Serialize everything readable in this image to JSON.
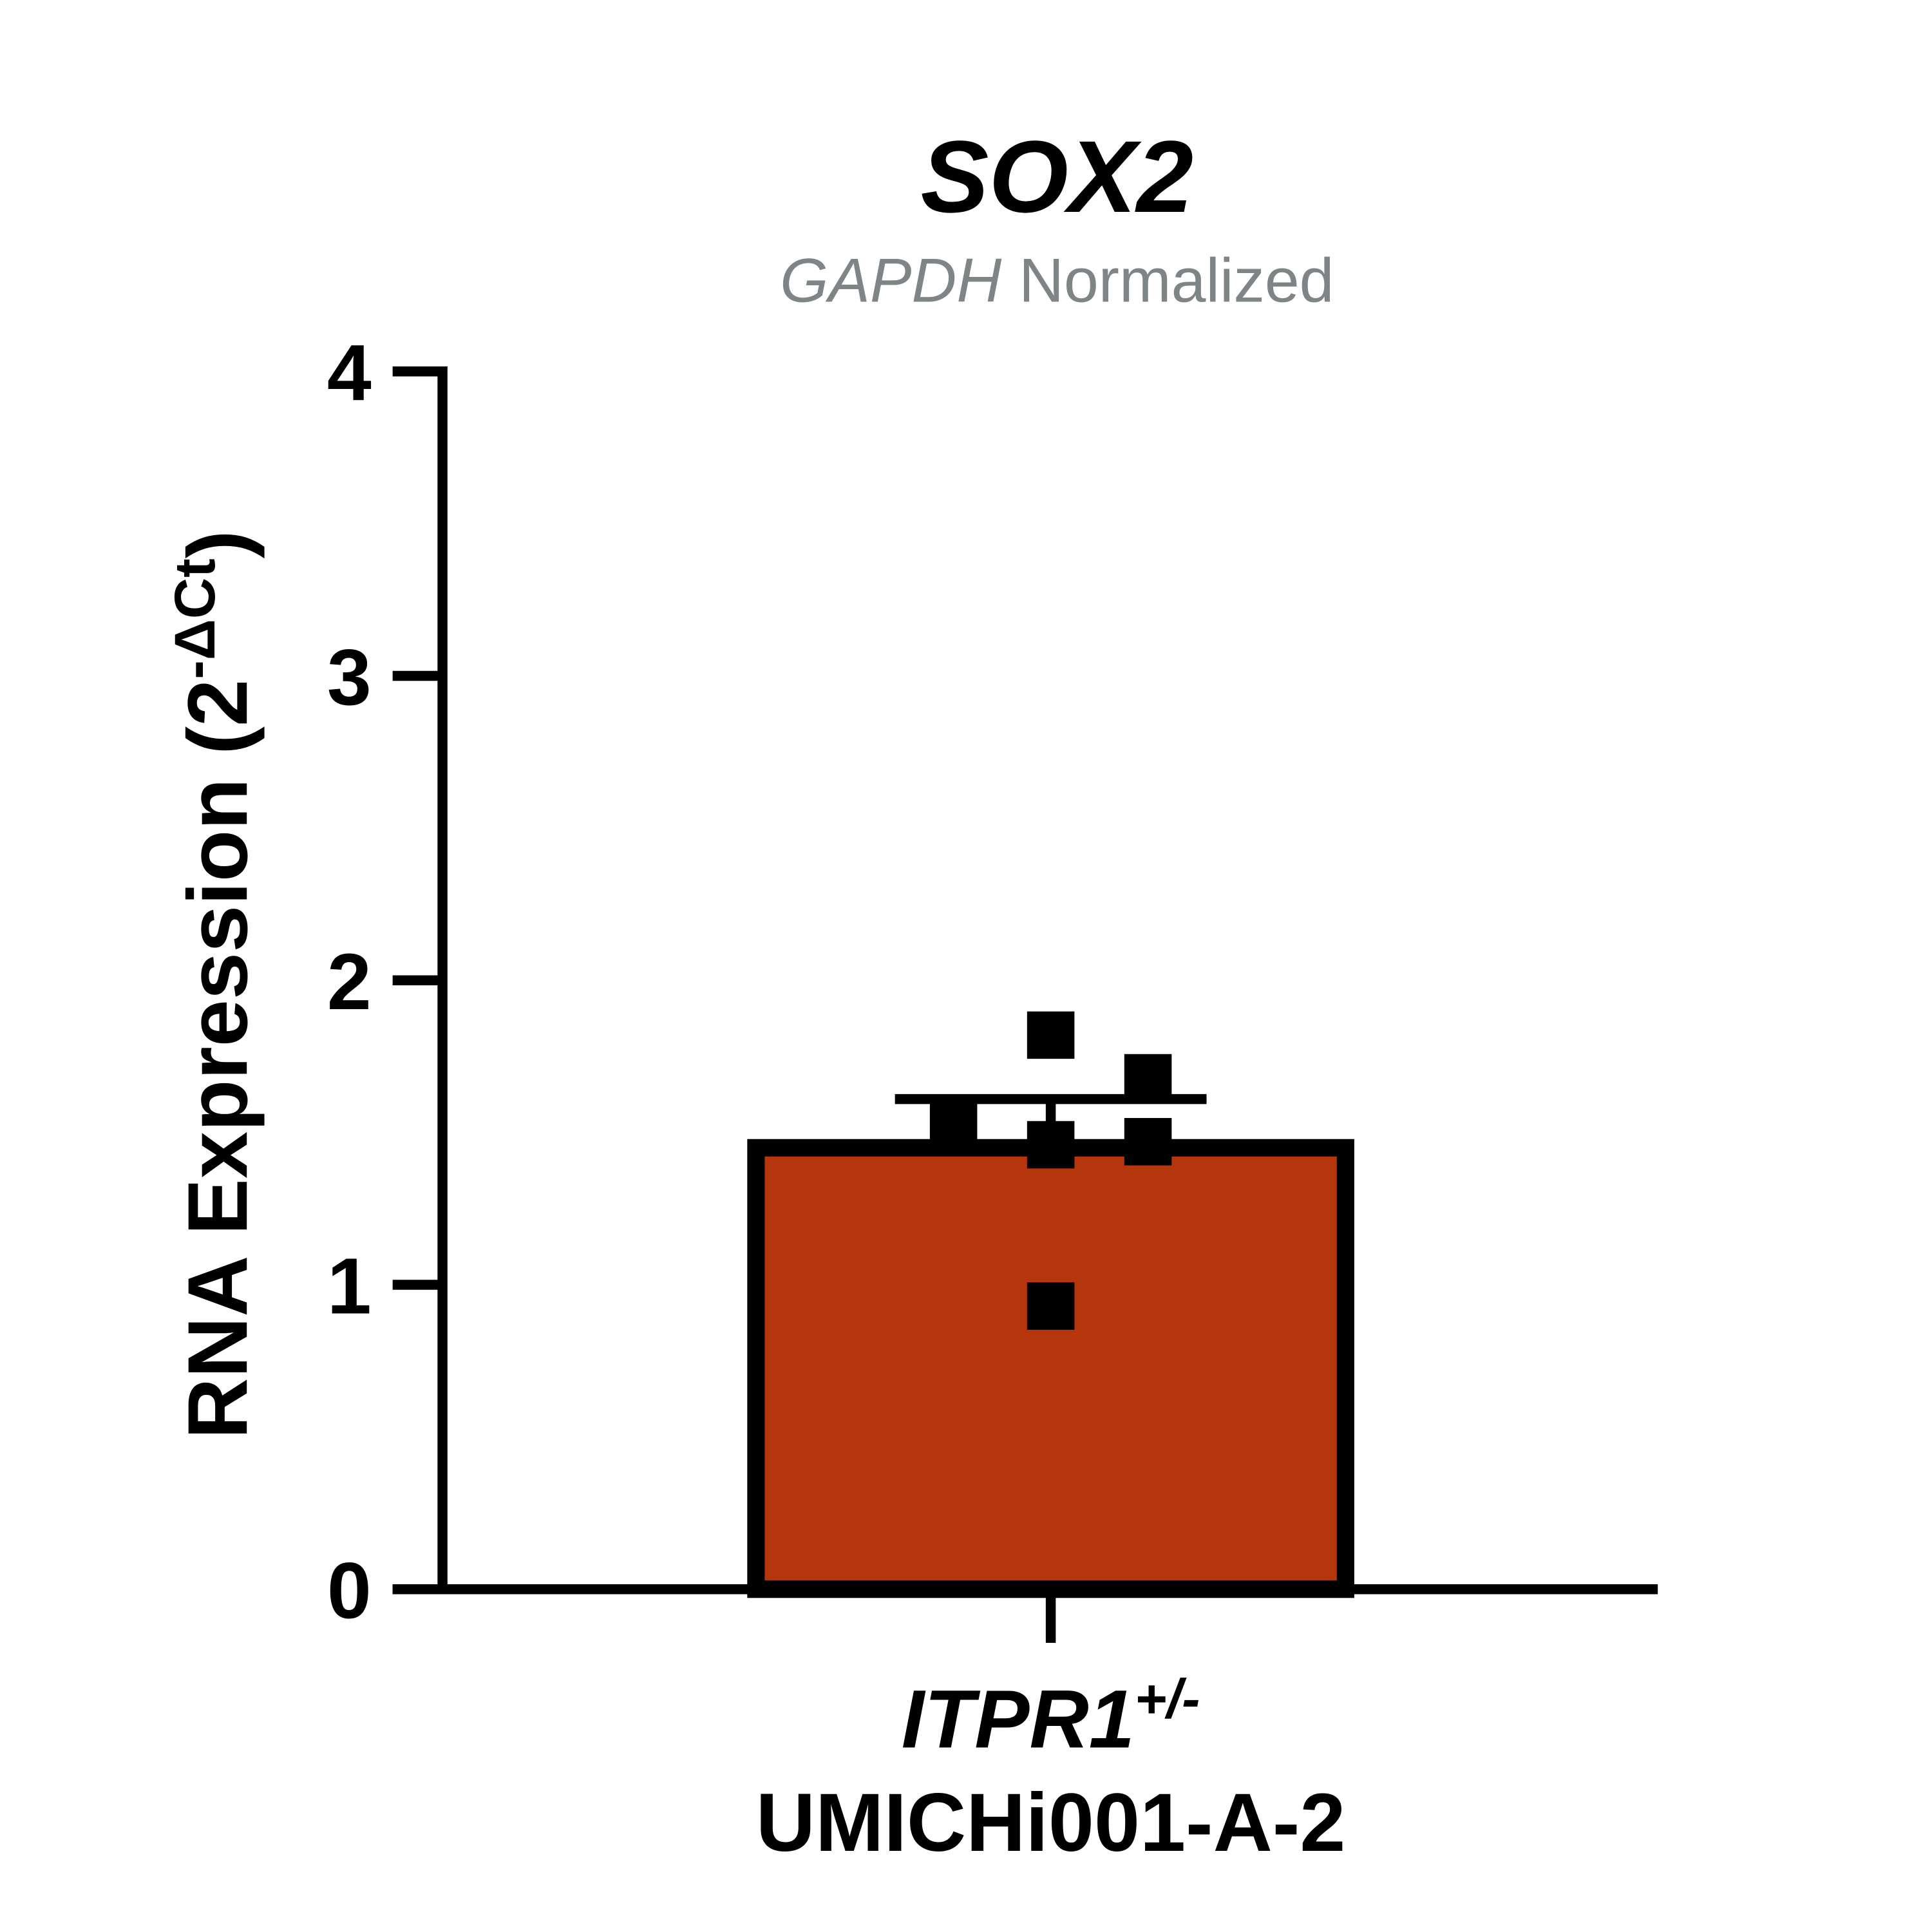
{
  "chart_data": {
    "type": "bar",
    "title": "SOX2",
    "subtitle": [
      "GAPDH",
      "Normalized"
    ],
    "y_label": [
      "RNA Expression (2",
      "-ΔCt",
      ")"
    ],
    "categories": [
      "ITPR1"
    ],
    "category_superscript": "+/-",
    "category_line2": "UMICHi001-A-2",
    "values": [
      1.45
    ],
    "errors": [
      0.16
    ],
    "points": [
      1.52,
      1.82,
      1.46,
      0.93,
      1.68,
      1.47
    ],
    "color": "#b5350c",
    "ylim": [
      0,
      4
    ],
    "yticks": [
      0,
      1,
      2,
      3,
      4
    ]
  }
}
